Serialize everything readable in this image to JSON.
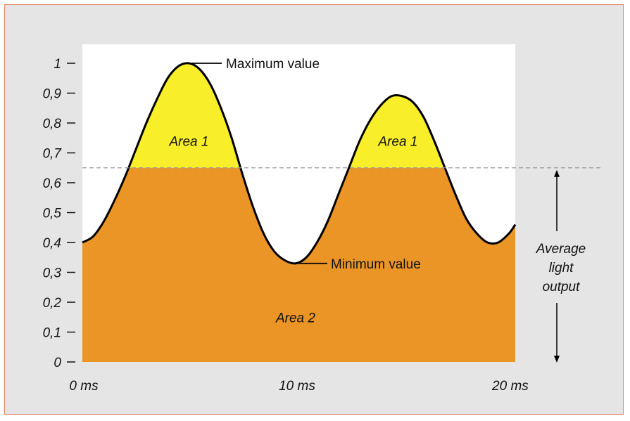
{
  "chart_data": {
    "type": "area",
    "title": "",
    "xlabel": "",
    "ylabel": "",
    "x_unit": "ms",
    "xlim": [
      0,
      20.3
    ],
    "ylim": [
      0,
      1
    ],
    "y_ticks": [
      {
        "value": 0,
        "label": "0"
      },
      {
        "value": 0.1,
        "label": "0,1"
      },
      {
        "value": 0.2,
        "label": "0,2"
      },
      {
        "value": 0.3,
        "label": "0,3"
      },
      {
        "value": 0.4,
        "label": "0,4"
      },
      {
        "value": 0.5,
        "label": "0,5"
      },
      {
        "value": 0.6,
        "label": "0,6"
      },
      {
        "value": 0.7,
        "label": "0,7"
      },
      {
        "value": 0.8,
        "label": "0,8"
      },
      {
        "value": 0.9,
        "label": "0,9"
      },
      {
        "value": 1,
        "label": "1"
      }
    ],
    "x_ticks": [
      {
        "value": 0,
        "label": "0 ms"
      },
      {
        "value": 10,
        "label": "10 ms"
      },
      {
        "value": 20,
        "label": "20 ms"
      }
    ],
    "curve": {
      "x": [
        0,
        0.5,
        1,
        1.5,
        2,
        2.5,
        3,
        3.5,
        4,
        4.5,
        5,
        5.5,
        6,
        6.5,
        7,
        7.5,
        8,
        8.5,
        9,
        9.5,
        10,
        10.5,
        11,
        11.5,
        12,
        12.5,
        13,
        13.5,
        14,
        14.5,
        15,
        15.5,
        16,
        16.5,
        17,
        17.5,
        18,
        18.5,
        19,
        19.5,
        20,
        20.3
      ],
      "y": [
        0.4,
        0.42,
        0.47,
        0.54,
        0.62,
        0.71,
        0.8,
        0.88,
        0.95,
        0.99,
        1.0,
        0.98,
        0.93,
        0.85,
        0.75,
        0.63,
        0.52,
        0.43,
        0.37,
        0.34,
        0.33,
        0.35,
        0.4,
        0.47,
        0.56,
        0.65,
        0.74,
        0.81,
        0.86,
        0.89,
        0.89,
        0.87,
        0.82,
        0.74,
        0.65,
        0.56,
        0.48,
        0.43,
        0.4,
        0.4,
        0.43,
        0.46
      ]
    },
    "average_level": 0.65,
    "fill_colors": {
      "above_average": "#f8ee2a",
      "below_average": "#ea9526"
    },
    "area_labels": [
      {
        "text": "Area 1",
        "x": 5,
        "y": 0.74
      },
      {
        "text": "Area 1",
        "x": 14.8,
        "y": 0.74
      },
      {
        "text": "Area 2",
        "x": 10,
        "y": 0.15
      }
    ],
    "annotations": {
      "max_label": "Maximum value",
      "min_label": "Minimum value",
      "average_label": [
        "Average",
        "light",
        "output"
      ]
    }
  }
}
